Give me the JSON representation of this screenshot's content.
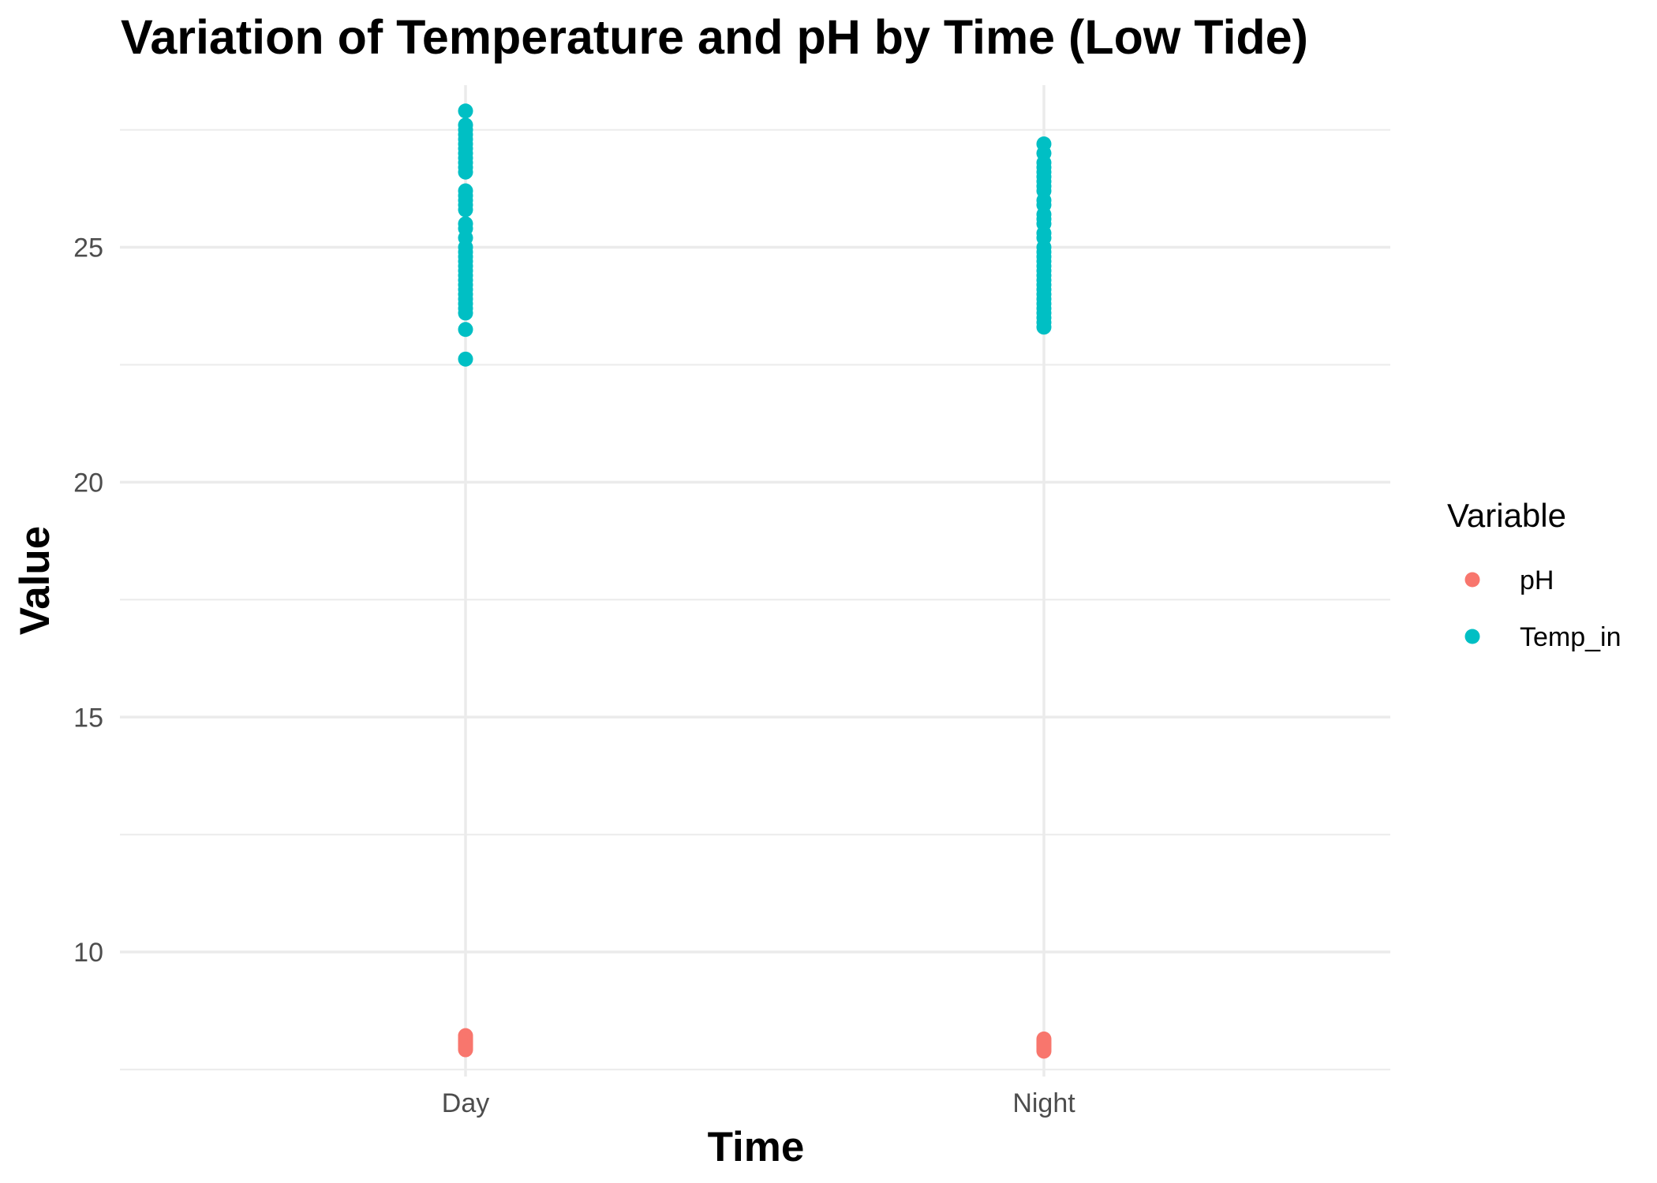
{
  "chart_data": {
    "type": "scatter",
    "title": "Variation of Temperature and pH by Time (Low Tide)",
    "xlabel": "Time",
    "ylabel": "Value",
    "categories": [
      "Day",
      "Night"
    ],
    "ylim": [
      7.35,
      28.45
    ],
    "y_ticks": [
      "10",
      "15",
      "20",
      "25"
    ],
    "y_minor": [
      7.5,
      12.5,
      17.5,
      22.5,
      27.5
    ],
    "grid": true,
    "legend": {
      "title": "Variable",
      "position": "right"
    },
    "series": [
      {
        "name": "pH",
        "color": "#F8766D",
        "points": [
          {
            "x": "Day",
            "y": 8.22
          },
          {
            "x": "Day",
            "y": 8.18
          },
          {
            "x": "Day",
            "y": 8.15
          },
          {
            "x": "Day",
            "y": 8.12
          },
          {
            "x": "Day",
            "y": 8.1
          },
          {
            "x": "Day",
            "y": 8.07
          },
          {
            "x": "Day",
            "y": 8.04
          },
          {
            "x": "Day",
            "y": 8.01
          },
          {
            "x": "Day",
            "y": 7.98
          },
          {
            "x": "Day",
            "y": 7.95
          },
          {
            "x": "Day",
            "y": 7.92
          },
          {
            "x": "Night",
            "y": 8.15
          },
          {
            "x": "Night",
            "y": 8.11
          },
          {
            "x": "Night",
            "y": 8.08
          },
          {
            "x": "Night",
            "y": 8.05
          },
          {
            "x": "Night",
            "y": 8.02
          },
          {
            "x": "Night",
            "y": 7.99
          },
          {
            "x": "Night",
            "y": 7.95
          },
          {
            "x": "Night",
            "y": 7.92
          },
          {
            "x": "Night",
            "y": 7.89
          }
        ]
      },
      {
        "name": "Temp_in",
        "color": "#00BFC4",
        "points": [
          {
            "x": "Day",
            "y": 27.9
          },
          {
            "x": "Day",
            "y": 27.6
          },
          {
            "x": "Day",
            "y": 27.5
          },
          {
            "x": "Day",
            "y": 27.4
          },
          {
            "x": "Day",
            "y": 27.3
          },
          {
            "x": "Day",
            "y": 27.2
          },
          {
            "x": "Day",
            "y": 27.1
          },
          {
            "x": "Day",
            "y": 27.0
          },
          {
            "x": "Day",
            "y": 26.9
          },
          {
            "x": "Day",
            "y": 26.8
          },
          {
            "x": "Day",
            "y": 26.7
          },
          {
            "x": "Day",
            "y": 26.6
          },
          {
            "x": "Day",
            "y": 26.2
          },
          {
            "x": "Day",
            "y": 26.1
          },
          {
            "x": "Day",
            "y": 26.0
          },
          {
            "x": "Day",
            "y": 25.9
          },
          {
            "x": "Day",
            "y": 25.8
          },
          {
            "x": "Day",
            "y": 25.5
          },
          {
            "x": "Day",
            "y": 25.4
          },
          {
            "x": "Day",
            "y": 25.2
          },
          {
            "x": "Day",
            "y": 25.0
          },
          {
            "x": "Day",
            "y": 24.9
          },
          {
            "x": "Day",
            "y": 24.8
          },
          {
            "x": "Day",
            "y": 24.7
          },
          {
            "x": "Day",
            "y": 24.6
          },
          {
            "x": "Day",
            "y": 24.5
          },
          {
            "x": "Day",
            "y": 24.4
          },
          {
            "x": "Day",
            "y": 24.3
          },
          {
            "x": "Day",
            "y": 24.2
          },
          {
            "x": "Day",
            "y": 24.1
          },
          {
            "x": "Day",
            "y": 24.0
          },
          {
            "x": "Day",
            "y": 23.9
          },
          {
            "x": "Day",
            "y": 23.8
          },
          {
            "x": "Day",
            "y": 23.7
          },
          {
            "x": "Day",
            "y": 23.6
          },
          {
            "x": "Day",
            "y": 23.25
          },
          {
            "x": "Day",
            "y": 22.62
          },
          {
            "x": "Night",
            "y": 27.2
          },
          {
            "x": "Night",
            "y": 27.0
          },
          {
            "x": "Night",
            "y": 26.8
          },
          {
            "x": "Night",
            "y": 26.7
          },
          {
            "x": "Night",
            "y": 26.6
          },
          {
            "x": "Night",
            "y": 26.5
          },
          {
            "x": "Night",
            "y": 26.4
          },
          {
            "x": "Night",
            "y": 26.3
          },
          {
            "x": "Night",
            "y": 26.2
          },
          {
            "x": "Night",
            "y": 26.0
          },
          {
            "x": "Night",
            "y": 25.9
          },
          {
            "x": "Night",
            "y": 25.7
          },
          {
            "x": "Night",
            "y": 25.6
          },
          {
            "x": "Night",
            "y": 25.5
          },
          {
            "x": "Night",
            "y": 25.3
          },
          {
            "x": "Night",
            "y": 25.2
          },
          {
            "x": "Night",
            "y": 25.0
          },
          {
            "x": "Night",
            "y": 24.9
          },
          {
            "x": "Night",
            "y": 24.8
          },
          {
            "x": "Night",
            "y": 24.7
          },
          {
            "x": "Night",
            "y": 24.6
          },
          {
            "x": "Night",
            "y": 24.5
          },
          {
            "x": "Night",
            "y": 24.4
          },
          {
            "x": "Night",
            "y": 24.3
          },
          {
            "x": "Night",
            "y": 24.2
          },
          {
            "x": "Night",
            "y": 24.1
          },
          {
            "x": "Night",
            "y": 24.0
          },
          {
            "x": "Night",
            "y": 23.9
          },
          {
            "x": "Night",
            "y": 23.8
          },
          {
            "x": "Night",
            "y": 23.7
          },
          {
            "x": "Night",
            "y": 23.6
          },
          {
            "x": "Night",
            "y": 23.5
          },
          {
            "x": "Night",
            "y": 23.4
          },
          {
            "x": "Night",
            "y": 23.3
          }
        ]
      }
    ]
  }
}
